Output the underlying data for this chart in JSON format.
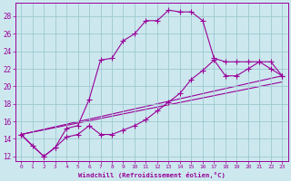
{
  "background_color": "#cce8ee",
  "line_color": "#990099",
  "xlim": [
    -0.5,
    23.5
  ],
  "ylim": [
    11.5,
    29.5
  ],
  "xlabel": "Windchill (Refroidissement éolien,°C)",
  "xticks": [
    0,
    1,
    2,
    3,
    4,
    5,
    6,
    7,
    8,
    9,
    10,
    11,
    12,
    13,
    14,
    15,
    16,
    17,
    18,
    19,
    20,
    21,
    22,
    23
  ],
  "yticks": [
    12,
    14,
    16,
    18,
    20,
    22,
    24,
    26,
    28
  ],
  "grid_color": "#9ec8d0",
  "curve1_x": [
    0,
    1,
    2,
    3,
    4,
    5,
    6,
    7,
    8,
    9,
    10,
    11,
    12,
    13,
    14,
    15,
    16,
    17,
    18,
    19,
    20,
    21,
    22,
    23
  ],
  "curve1_y": [
    14.5,
    13.2,
    12.0,
    13.0,
    15.2,
    15.5,
    18.5,
    23.0,
    23.2,
    25.2,
    26.0,
    27.5,
    27.5,
    28.7,
    28.5,
    28.5,
    27.5,
    23.2,
    22.8,
    22.8,
    22.8,
    22.8,
    22.0,
    21.2
  ],
  "curve2_x": [
    0,
    2,
    3,
    4,
    5,
    6,
    7,
    8,
    9,
    10,
    11,
    12,
    13,
    14,
    15,
    16,
    17,
    18,
    19,
    20,
    21,
    22,
    23
  ],
  "curve2_y": [
    14.5,
    12.0,
    13.0,
    14.2,
    14.5,
    15.5,
    14.5,
    14.5,
    15.0,
    15.5,
    16.2,
    17.2,
    18.2,
    19.2,
    20.8,
    21.8,
    23.0,
    21.2,
    21.2,
    22.0,
    22.8,
    22.8,
    21.2
  ],
  "curve3_x": [
    0,
    23
  ],
  "curve3_y": [
    14.5,
    21.2
  ],
  "curve4_x": [
    0,
    23
  ],
  "curve4_y": [
    14.5,
    20.5
  ]
}
